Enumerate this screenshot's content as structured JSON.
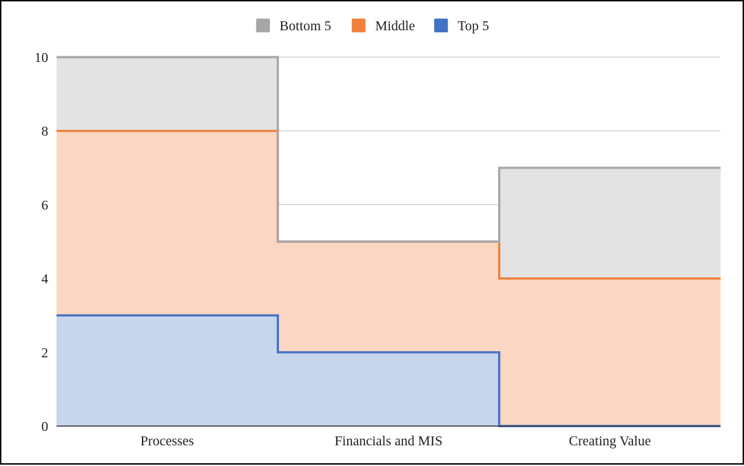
{
  "chart_data": {
    "type": "area",
    "step": true,
    "stacked": true,
    "categories": [
      "Processes",
      "Financials and MIS",
      "Creating Value"
    ],
    "series": [
      {
        "name": "Bottom 5",
        "values": [
          2,
          0,
          3
        ],
        "color": "#a6a6a6",
        "fill": "#e3e3e3"
      },
      {
        "name": "Middle",
        "values": [
          5,
          3,
          4
        ],
        "color": "#f0803c",
        "fill": "#f9d7c3"
      },
      {
        "name": "Top 5",
        "values": [
          3,
          2,
          0
        ],
        "color": "#4472c4",
        "fill": "#c7d5ed"
      }
    ],
    "ylim": [
      0,
      10
    ],
    "yticks": [
      0,
      2,
      4,
      6,
      8,
      10
    ],
    "grid": true,
    "legend": "top-center",
    "title": "",
    "xlabel": "",
    "ylabel": ""
  }
}
